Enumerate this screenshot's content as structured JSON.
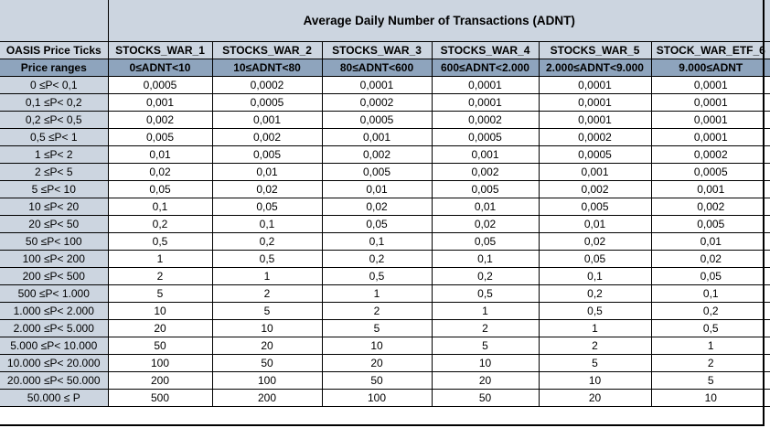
{
  "chart_data": {
    "type": "table",
    "title": "Average Daily Number of Transactions (ADNT)",
    "corner": {
      "label": "OASIS Price Ticks",
      "sublabel": "Price ranges"
    },
    "columns": [
      {
        "name": "STOCKS_WAR_1",
        "adnt_range": "0≤ADNT<10"
      },
      {
        "name": "STOCKS_WAR_2",
        "adnt_range": "10≤ADNT<80"
      },
      {
        "name": "STOCKS_WAR_3",
        "adnt_range": "80≤ADNT<600"
      },
      {
        "name": "STOCKS_WAR_4",
        "adnt_range": "600≤ADNT<2.000"
      },
      {
        "name": "STOCKS_WAR_5",
        "adnt_range": "2.000≤ADNT<9.000"
      },
      {
        "name": "STOCK_WAR_ETF_6",
        "adnt_range": "9.000≤ADNT"
      }
    ],
    "rows": [
      {
        "price_range": "0 ≤P< 0,1",
        "values": [
          "0,0005",
          "0,0002",
          "0,0001",
          "0,0001",
          "0,0001",
          "0,0001"
        ]
      },
      {
        "price_range": "0,1 ≤P< 0,2",
        "values": [
          "0,001",
          "0,0005",
          "0,0002",
          "0,0001",
          "0,0001",
          "0,0001"
        ]
      },
      {
        "price_range": "0,2 ≤P< 0,5",
        "values": [
          "0,002",
          "0,001",
          "0,0005",
          "0,0002",
          "0,0001",
          "0,0001"
        ]
      },
      {
        "price_range": "0,5 ≤P< 1",
        "values": [
          "0,005",
          "0,002",
          "0,001",
          "0,0005",
          "0,0002",
          "0,0001"
        ]
      },
      {
        "price_range": "1 ≤P< 2",
        "values": [
          "0,01",
          "0,005",
          "0,002",
          "0,001",
          "0,0005",
          "0,0002"
        ]
      },
      {
        "price_range": "2 ≤P< 5",
        "values": [
          "0,02",
          "0,01",
          "0,005",
          "0,002",
          "0,001",
          "0,0005"
        ]
      },
      {
        "price_range": "5 ≤P< 10",
        "values": [
          "0,05",
          "0,02",
          "0,01",
          "0,005",
          "0,002",
          "0,001"
        ]
      },
      {
        "price_range": "10 ≤P< 20",
        "values": [
          "0,1",
          "0,05",
          "0,02",
          "0,01",
          "0,005",
          "0,002"
        ]
      },
      {
        "price_range": "20 ≤P< 50",
        "values": [
          "0,2",
          "0,1",
          "0,05",
          "0,02",
          "0,01",
          "0,005"
        ]
      },
      {
        "price_range": "50 ≤P< 100",
        "values": [
          "0,5",
          "0,2",
          "0,1",
          "0,05",
          "0,02",
          "0,01"
        ]
      },
      {
        "price_range": "100 ≤P< 200",
        "values": [
          "1",
          "0,5",
          "0,2",
          "0,1",
          "0,05",
          "0,02"
        ]
      },
      {
        "price_range": "200 ≤P< 500",
        "values": [
          "2",
          "1",
          "0,5",
          "0,2",
          "0,1",
          "0,05"
        ]
      },
      {
        "price_range": "500 ≤P< 1.000",
        "values": [
          "5",
          "2",
          "1",
          "0,5",
          "0,2",
          "0,1"
        ]
      },
      {
        "price_range": "1.000 ≤P< 2.000",
        "values": [
          "10",
          "5",
          "2",
          "1",
          "0,5",
          "0,2"
        ]
      },
      {
        "price_range": "2.000 ≤P< 5.000",
        "values": [
          "20",
          "10",
          "5",
          "2",
          "1",
          "0,5"
        ]
      },
      {
        "price_range": "5.000 ≤P< 10.000",
        "values": [
          "50",
          "20",
          "10",
          "5",
          "2",
          "1"
        ]
      },
      {
        "price_range": "10.000 ≤P< 20.000",
        "values": [
          "100",
          "50",
          "20",
          "10",
          "5",
          "2"
        ]
      },
      {
        "price_range": "20.000 ≤P< 50.000",
        "values": [
          "200",
          "100",
          "50",
          "20",
          "10",
          "5"
        ]
      },
      {
        "price_range": "50.000 ≤ P",
        "values": [
          "500",
          "200",
          "100",
          "50",
          "20",
          "10"
        ]
      }
    ]
  },
  "colors": {
    "header_light": "#ccd5e0",
    "header_dark": "#8ea4bd",
    "cell_bg": "#ffffff",
    "border": "#000000",
    "text": "#000000"
  }
}
